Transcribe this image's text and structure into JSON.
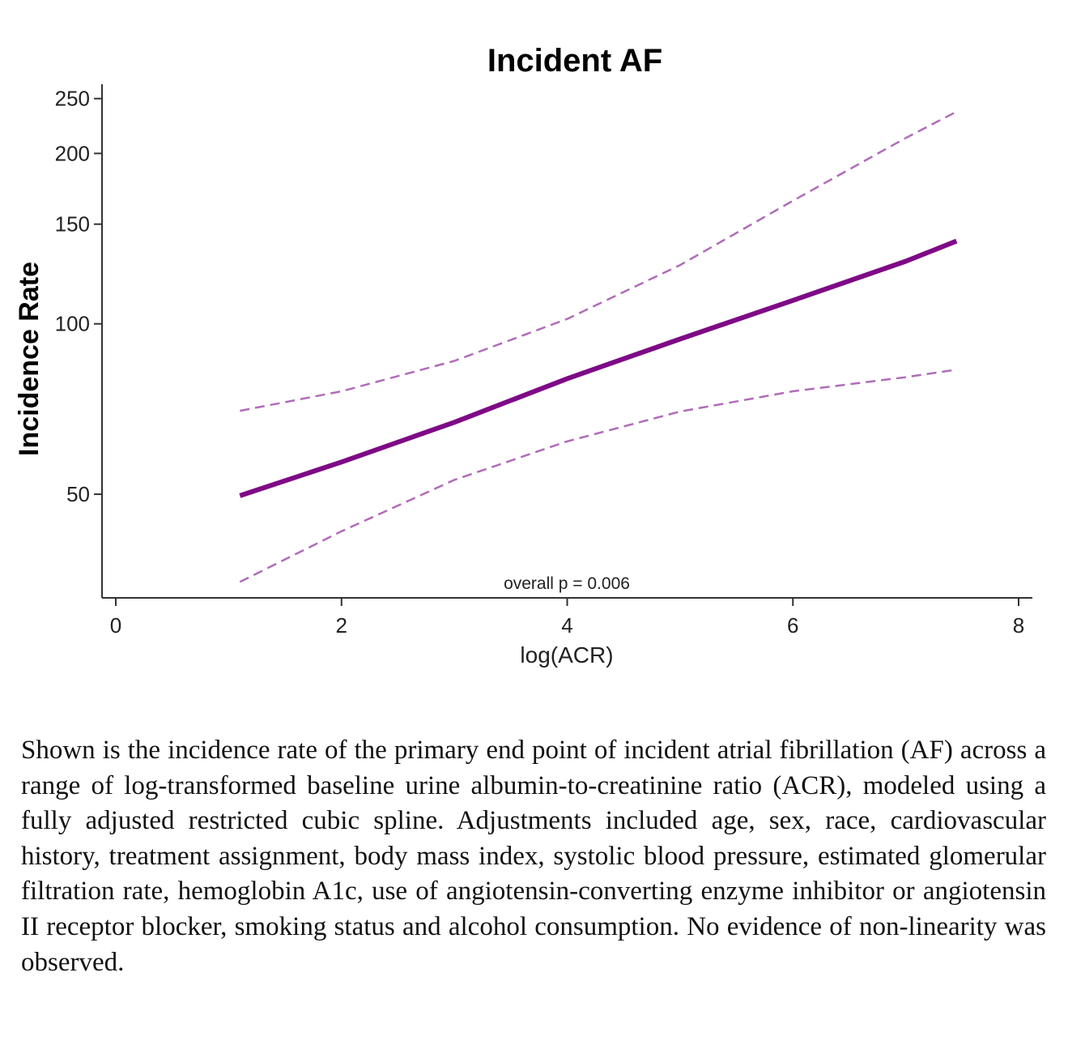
{
  "chart_data": {
    "type": "line",
    "title": "Incident AF",
    "xlabel": "log(ACR)",
    "ylabel": "Incidence Rate",
    "y_scale": "log",
    "xlim": [
      0,
      8
    ],
    "ylim": [
      32.8,
      265
    ],
    "x_ticks": [
      0,
      2,
      4,
      6,
      8
    ],
    "y_ticks": [
      50,
      100,
      150,
      200,
      250
    ],
    "annotation": "overall p = 0.006",
    "grid": false,
    "colors": {
      "estimate": "#7e0a86",
      "ci": "#b06cb8"
    },
    "series": [
      {
        "name": "estimate",
        "style": "solid",
        "x": [
          1.1,
          2,
          3,
          4,
          5,
          6,
          7,
          7.45
        ],
        "y": [
          49.7,
          57,
          67,
          80,
          94,
          110,
          129,
          140
        ]
      },
      {
        "name": "upper CI",
        "style": "dashed",
        "x": [
          1.1,
          2,
          3,
          4,
          5,
          6,
          7,
          7.45
        ],
        "y": [
          70.2,
          76,
          86,
          102,
          127,
          165,
          213,
          237
        ]
      },
      {
        "name": "lower CI",
        "style": "dashed",
        "x": [
          1.1,
          2,
          3,
          4,
          5,
          6,
          7,
          7.45
        ],
        "y": [
          35,
          43,
          53,
          62,
          70,
          76,
          80.5,
          83
        ]
      }
    ]
  },
  "caption": "Shown is the incidence rate of the primary end point of incident atrial fibrillation (AF) across a range of log-transformed baseline urine albumin-to-creatinine ratio (ACR), modeled using a fully adjusted restricted cubic spline. Adjustments included age, sex, race, cardiovascular history, treatment assignment, body mass index, systolic blood pressure, estimated glomerular filtration rate, hemoglobin A1c, use of angiotensin-converting enzyme inhibitor or angiotensin II receptor blocker, smoking status and alcohol consumption. No evidence of non-linearity was observed."
}
